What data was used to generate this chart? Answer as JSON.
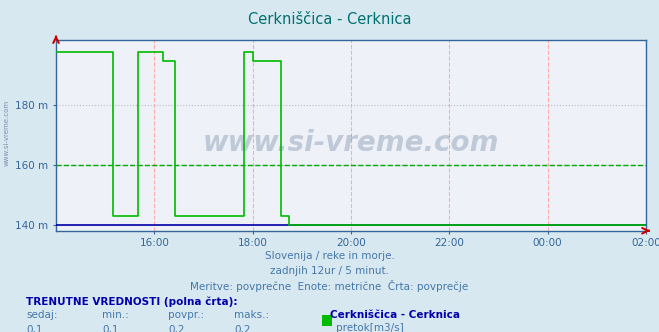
{
  "title": "Cerkniščica - Cerknica",
  "title_color": "#007070",
  "bg_color": "#d8e8f0",
  "plot_bg_color": "#eef2f8",
  "yticks": [
    140,
    160,
    180
  ],
  "ytick_labels": [
    "140 m",
    "160 m",
    "180 m"
  ],
  "ylim": [
    138,
    202
  ],
  "xlim": [
    0,
    144
  ],
  "xtick_positions": [
    24,
    48,
    72,
    96,
    120,
    144
  ],
  "xtick_labels": [
    "16:00",
    "18:00",
    "20:00",
    "22:00",
    "00:00",
    "02:00"
  ],
  "line_color_green": "#00bb00",
  "line_color_blue": "#0000aa",
  "grid_v_color": "#ffaaaa",
  "grid_h_color": "#bbbbcc",
  "avg_line_color": "#00aa00",
  "avg_line_y": 160,
  "subtitle1": "Slovenija / reke in morje.",
  "subtitle2": "zadnjih 12ur / 5 minut.",
  "subtitle3": "Meritve: povprečne  Enote: metrične  Črta: povprečje",
  "subtitle_color": "#4477aa",
  "footer_label1": "TRENUTNE VREDNOSTI (polna črta):",
  "footer_color": "#0000aa",
  "footer_row": [
    "sedaj:",
    "min.:",
    "povpr.:",
    "maks.:"
  ],
  "footer_vals": [
    "0,1",
    "0,1",
    "0,2",
    "0,2"
  ],
  "legend_label": "Cerkniščica - Cerknica",
  "legend_series": "pretok[m3/s]",
  "legend_color": "#00bb00",
  "watermark": "www.si-vreme.com",
  "watermark_color": "#1a3a6a",
  "sidewatermark": "www.si-vreme.com",
  "green_data_x": [
    0,
    8,
    8,
    14,
    14,
    16,
    16,
    20,
    20,
    26,
    26,
    29,
    29,
    44,
    44,
    46,
    46,
    48,
    48,
    55,
    55,
    57,
    57,
    72,
    72,
    144
  ],
  "green_data_y": [
    198,
    198,
    198,
    198,
    143,
    143,
    143,
    143,
    198,
    198,
    195,
    195,
    143,
    143,
    143,
    143,
    198,
    198,
    195,
    195,
    143,
    143,
    140,
    140,
    140,
    140
  ],
  "blue_data_x": [
    0,
    144
  ],
  "blue_data_y": [
    140,
    140
  ],
  "spine_color": "#336699",
  "arrow_color": "#cc0000"
}
